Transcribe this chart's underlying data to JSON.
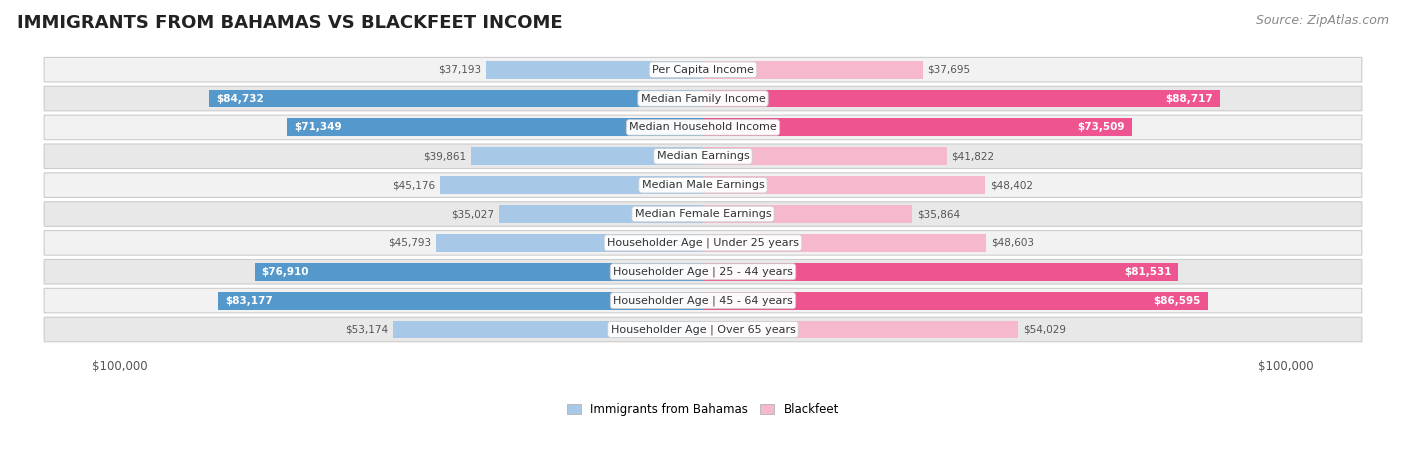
{
  "title": "IMMIGRANTS FROM BAHAMAS VS BLACKFEET INCOME",
  "source": "Source: ZipAtlas.com",
  "categories": [
    "Per Capita Income",
    "Median Family Income",
    "Median Household Income",
    "Median Earnings",
    "Median Male Earnings",
    "Median Female Earnings",
    "Householder Age | Under 25 years",
    "Householder Age | 25 - 44 years",
    "Householder Age | 45 - 64 years",
    "Householder Age | Over 65 years"
  ],
  "bahamas_values": [
    37193,
    84732,
    71349,
    39861,
    45176,
    35027,
    45793,
    76910,
    83177,
    53174
  ],
  "blackfeet_values": [
    37695,
    88717,
    73509,
    41822,
    48402,
    35864,
    48603,
    81531,
    86595,
    54029
  ],
  "bahamas_labels": [
    "$37,193",
    "$84,732",
    "$71,349",
    "$39,861",
    "$45,176",
    "$35,027",
    "$45,793",
    "$76,910",
    "$83,177",
    "$53,174"
  ],
  "blackfeet_labels": [
    "$37,695",
    "$88,717",
    "$73,509",
    "$41,822",
    "$48,402",
    "$35,864",
    "$48,603",
    "$81,531",
    "$86,595",
    "$54,029"
  ],
  "max_value": 100000,
  "dark_threshold": 65000,
  "bahamas_color_light": "#a8c8e8",
  "bahamas_color_dark": "#5599cc",
  "blackfeet_color_light": "#f5b8cc",
  "blackfeet_color_dark": "#ee5590",
  "row_bg_even": "#f2f2f2",
  "row_bg_odd": "#e8e8e8",
  "title_fontsize": 13,
  "source_fontsize": 9,
  "label_fontsize": 8,
  "value_fontsize": 7.5,
  "legend_label_bahamas": "Immigrants from Bahamas",
  "legend_label_blackfeet": "Blackfeet"
}
